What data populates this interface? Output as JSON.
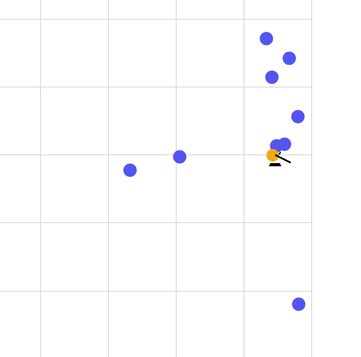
{
  "game": {
    "colors": {
      "background": "#ffffff",
      "grid": "#d8d8d8",
      "enemy": "#5454f0",
      "player": "#f0a818",
      "player_outline": "#000000"
    },
    "enemy_count": 11,
    "player_icon": "player-with-weapon-icon"
  }
}
